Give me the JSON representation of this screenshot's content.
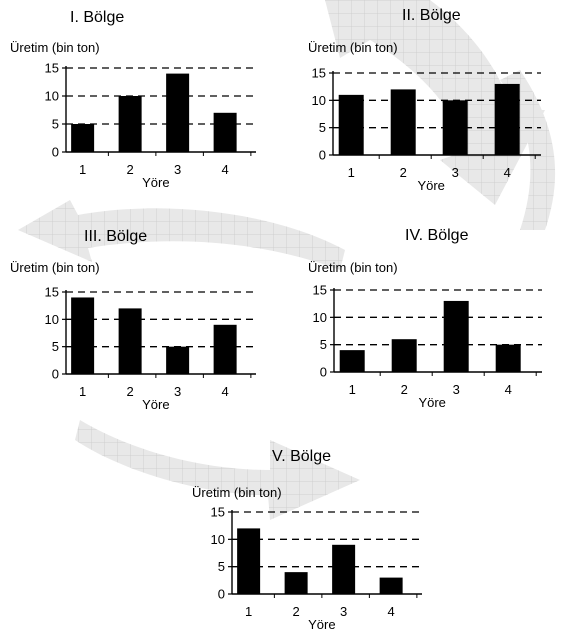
{
  "chart_data": [
    {
      "type": "bar",
      "title": "I. Bölge",
      "ylabel": "Üretim (bin ton)",
      "xlabel": "Yöre",
      "categories": [
        "1",
        "2",
        "3",
        "4"
      ],
      "values": [
        5,
        10,
        14,
        7
      ],
      "ylim": [
        0,
        15
      ],
      "yticks": [
        "0",
        "5",
        "10",
        "15"
      ],
      "grid": "dashed-horizontal"
    },
    {
      "type": "bar",
      "title": "II. Bölge",
      "ylabel": "Üretim (bin ton)",
      "xlabel": "Yöre",
      "categories": [
        "1",
        "2",
        "3",
        "4"
      ],
      "values": [
        11,
        12,
        10,
        13
      ],
      "ylim": [
        0,
        15
      ],
      "yticks": [
        "0",
        "5",
        "10",
        "15"
      ],
      "grid": "dashed-horizontal"
    },
    {
      "type": "bar",
      "title": "III. Bölge",
      "ylabel": "Üretim (bin ton)",
      "xlabel": "Yöre",
      "categories": [
        "1",
        "2",
        "3",
        "4"
      ],
      "values": [
        14,
        12,
        5,
        9
      ],
      "ylim": [
        0,
        15
      ],
      "yticks": [
        "0",
        "5",
        "10",
        "15"
      ],
      "grid": "dashed-horizontal"
    },
    {
      "type": "bar",
      "title": "IV. Bölge",
      "ylabel": "Üretim (bin ton)",
      "xlabel": "Yöre",
      "categories": [
        "1",
        "2",
        "3",
        "4"
      ],
      "values": [
        4,
        6,
        13,
        5
      ],
      "ylim": [
        0,
        15
      ],
      "yticks": [
        "0",
        "5",
        "10",
        "15"
      ],
      "grid": "dashed-horizontal"
    },
    {
      "type": "bar",
      "title": "V. Bölge",
      "ylabel": "Üretim (bin ton)",
      "xlabel": "Yöre",
      "categories": [
        "1",
        "2",
        "3",
        "4"
      ],
      "values": [
        12,
        4,
        9,
        3
      ],
      "ylim": [
        0,
        15
      ],
      "yticks": [
        "0",
        "5",
        "10",
        "15"
      ],
      "grid": "dashed-horizontal"
    }
  ],
  "colors": {
    "bar": "#000000",
    "axis": "#000000",
    "grid": "#000000",
    "watermark_fill": "#e7e7e7",
    "watermark_grid": "#cfcfcf"
  }
}
